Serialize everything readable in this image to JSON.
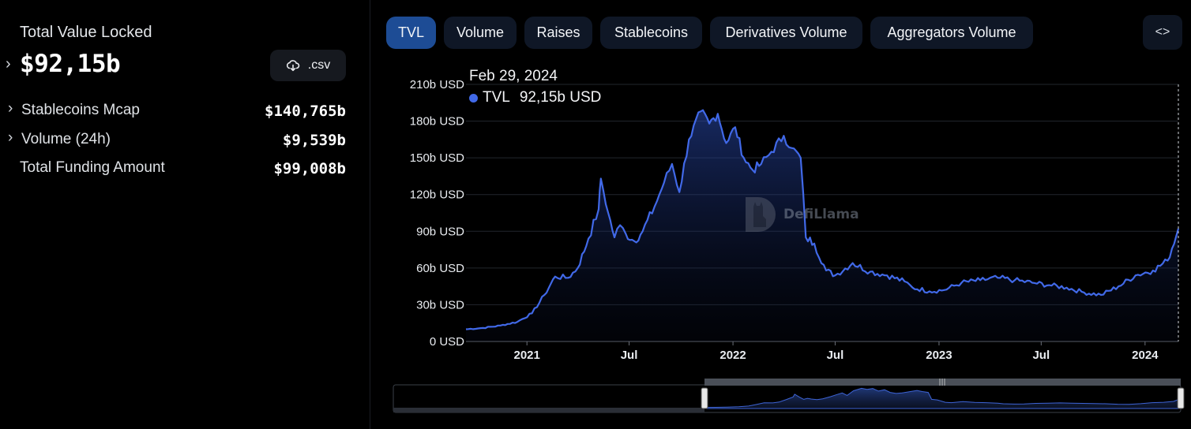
{
  "sidebar": {
    "tvl_label": "Total Value Locked",
    "tvl_value": "$92,15b",
    "csv_label": ".csv",
    "metrics": [
      {
        "label": "Stablecoins Mcap",
        "value": "$140,765b",
        "expandable": true
      },
      {
        "label": "Volume (24h)",
        "value": "$9,539b",
        "expandable": true
      },
      {
        "label": "Total Funding Amount",
        "value": "$99,008b",
        "expandable": false
      }
    ]
  },
  "tabs": [
    {
      "label": "TVL",
      "active": true
    },
    {
      "label": "Volume",
      "active": false
    },
    {
      "label": "Raises",
      "active": false
    },
    {
      "label": "Stablecoins",
      "active": false
    },
    {
      "label": "Derivatives Volume",
      "active": false
    },
    {
      "label": "Aggregators Volume",
      "active": false
    }
  ],
  "embed_icon": "code-icon",
  "tooltip": {
    "date": "Feb 29, 2024",
    "series": "TVL",
    "value": "92,15b USD"
  },
  "watermark": "DefiLlama",
  "colors": {
    "accent": "#4169e8",
    "active_tab": "#1d4c95",
    "tab": "#0f1726"
  },
  "chart_data": {
    "type": "area",
    "y_ticks": [
      "0 USD",
      "30b USD",
      "60b USD",
      "90b USD",
      "120b USD",
      "150b USD",
      "180b USD",
      "210b USD"
    ],
    "x_ticks": [
      "2021",
      "Jul",
      "2022",
      "Jul",
      "2023",
      "Jul",
      "2024"
    ],
    "ylim": [
      0,
      210
    ],
    "grid": true,
    "series": [
      {
        "name": "TVL",
        "unit": "b USD",
        "points": [
          [
            "2020-09-15",
            10
          ],
          [
            "2020-10-15",
            11
          ],
          [
            "2020-11-15",
            13
          ],
          [
            "2020-12-15",
            16
          ],
          [
            "2021-01-10",
            23
          ],
          [
            "2021-02-01",
            38
          ],
          [
            "2021-02-20",
            53
          ],
          [
            "2021-03-15",
            52
          ],
          [
            "2021-04-01",
            60
          ],
          [
            "2021-04-20",
            84
          ],
          [
            "2021-05-08",
            108
          ],
          [
            "2021-05-12",
            133
          ],
          [
            "2021-05-25",
            105
          ],
          [
            "2021-06-05",
            85
          ],
          [
            "2021-06-15",
            95
          ],
          [
            "2021-06-25",
            88
          ],
          [
            "2021-07-10",
            82
          ],
          [
            "2021-07-25",
            90
          ],
          [
            "2021-08-15",
            110
          ],
          [
            "2021-09-01",
            130
          ],
          [
            "2021-09-15",
            145
          ],
          [
            "2021-09-28",
            122
          ],
          [
            "2021-10-15",
            165
          ],
          [
            "2021-11-05",
            188
          ],
          [
            "2021-11-20",
            178
          ],
          [
            "2021-12-05",
            186
          ],
          [
            "2021-12-20",
            162
          ],
          [
            "2022-01-05",
            175
          ],
          [
            "2022-01-20",
            150
          ],
          [
            "2022-02-05",
            140
          ],
          [
            "2022-02-20",
            145
          ],
          [
            "2022-03-10",
            155
          ],
          [
            "2022-04-01",
            168
          ],
          [
            "2022-04-15",
            158
          ],
          [
            "2022-05-01",
            150
          ],
          [
            "2022-05-10",
            85
          ],
          [
            "2022-05-25",
            80
          ],
          [
            "2022-06-15",
            58
          ],
          [
            "2022-07-01",
            54
          ],
          [
            "2022-08-01",
            64
          ],
          [
            "2022-09-01",
            57
          ],
          [
            "2022-10-01",
            54
          ],
          [
            "2022-11-01",
            49
          ],
          [
            "2022-11-15",
            44
          ],
          [
            "2022-12-15",
            41
          ],
          [
            "2023-01-10",
            42
          ],
          [
            "2023-02-10",
            48
          ],
          [
            "2023-03-15",
            50
          ],
          [
            "2023-04-15",
            52
          ],
          [
            "2023-05-15",
            50
          ],
          [
            "2023-06-15",
            48
          ],
          [
            "2023-07-15",
            46
          ],
          [
            "2023-08-15",
            44
          ],
          [
            "2023-09-15",
            40
          ],
          [
            "2023-10-15",
            38
          ],
          [
            "2023-11-15",
            45
          ],
          [
            "2023-12-15",
            54
          ],
          [
            "2024-01-15",
            58
          ],
          [
            "2024-02-10",
            66
          ],
          [
            "2024-02-29",
            92.15
          ]
        ]
      }
    ]
  }
}
